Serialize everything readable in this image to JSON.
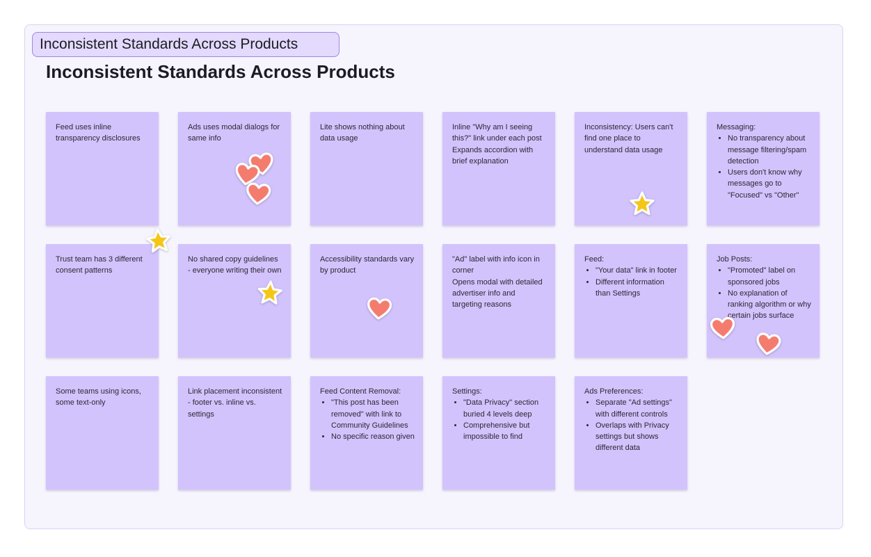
{
  "section": {
    "tag_label": "Inconsistent Standards Across Products",
    "title": "Inconsistent Standards Across Products"
  },
  "notes": [
    {
      "lines": [
        "Feed uses inline transparency disclosures"
      ]
    },
    {
      "lines": [
        "Ads uses modal dialogs for same info"
      ]
    },
    {
      "lines": [
        "Lite shows nothing about data usage"
      ]
    },
    {
      "lines": [
        "Inline \"Why am I seeing this?\" link under each post",
        "Expands accordion with brief explanation"
      ]
    },
    {
      "lines": [
        "Inconsistency: Users can't find one place to understand data usage"
      ]
    },
    {
      "lines": [
        "Messaging:"
      ],
      "bullets": [
        "No transparency about message filtering/spam detection",
        "Users don't know why messages go to \"Focused\" vs \"Other\""
      ]
    },
    {
      "lines": [
        "Trust team has 3 different consent patterns"
      ]
    },
    {
      "lines": [
        "No shared copy guidelines - everyone writing their own"
      ]
    },
    {
      "lines": [
        "Accessibility standards vary by product"
      ]
    },
    {
      "lines": [
        "\"Ad\" label with info icon in corner",
        "Opens modal with detailed advertiser info and targeting reasons"
      ]
    },
    {
      "lines": [
        "Feed:"
      ],
      "bullets": [
        "\"Your data\" link in footer",
        "Different information than Settings"
      ]
    },
    {
      "lines": [
        "Job Posts:"
      ],
      "bullets": [
        "\"Promoted\" label on sponsored jobs",
        "No explanation of ranking algorithm or why certain jobs surface"
      ]
    },
    {
      "lines": [
        "Some teams using icons, some text-only"
      ]
    },
    {
      "lines": [
        "Link placement inconsistent - footer vs. inline vs. settings"
      ]
    },
    {
      "lines": [
        "Feed Content Removal:"
      ],
      "bullets": [
        "\"This post has been removed\" with link to Community Guidelines",
        "No specific reason given"
      ]
    },
    {
      "lines": [
        "Settings:"
      ],
      "bullets": [
        "\"Data Privacy\" section buried 4 levels deep",
        "Comprehensive but impossible to find"
      ]
    },
    {
      "lines": [
        "Ads Preferences:"
      ],
      "bullets": [
        "Separate \"Ad settings\" with different controls",
        "Overlaps with Privacy settings but shows different data"
      ]
    }
  ],
  "stickers": [
    {
      "type": "heart",
      "icon": "heart-icon"
    },
    {
      "type": "heart",
      "icon": "heart-icon"
    },
    {
      "type": "heart",
      "icon": "heart-icon"
    },
    {
      "type": "star",
      "icon": "star-icon"
    },
    {
      "type": "star",
      "icon": "star-icon"
    },
    {
      "type": "star",
      "icon": "star-icon"
    },
    {
      "type": "heart",
      "icon": "heart-icon"
    },
    {
      "type": "heart",
      "icon": "heart-icon"
    },
    {
      "type": "heart",
      "icon": "heart-icon"
    }
  ],
  "colors": {
    "note_fill": "#d2c3fd",
    "section_fill": "#f6f4fd",
    "tag_fill": "#e3dafd",
    "tag_border": "#9d86e5",
    "heart": "#f47c6e",
    "star": "#f5c518"
  }
}
